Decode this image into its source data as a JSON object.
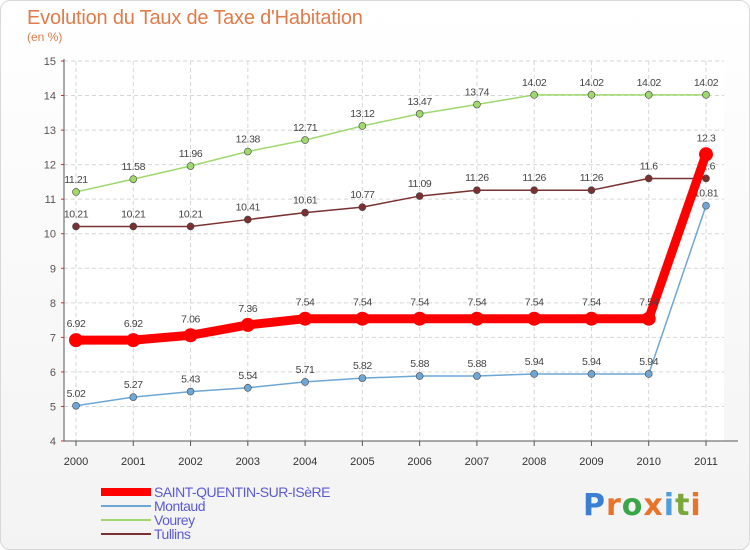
{
  "title": "Evolution du Taux de Taxe d'Habitation",
  "subtitle": "(en %)",
  "logo": {
    "text": "Proxiti",
    "colors": [
      "#3a7fd4",
      "#e8742c",
      "#3aa64a",
      "#e8742c",
      "#4f9edc",
      "#7aa83a",
      "#e8742c"
    ]
  },
  "chart_data": {
    "type": "line",
    "title": "Evolution du Taux de Taxe d'Habitation",
    "ylabel": "(en %)",
    "xlabel": "",
    "x": [
      "2000",
      "2001",
      "2002",
      "2003",
      "2004",
      "2005",
      "2006",
      "2007",
      "2008",
      "2009",
      "2010",
      "2011"
    ],
    "ylim": [
      4,
      15
    ],
    "yticks": [
      "4",
      "5",
      "6",
      "7",
      "8",
      "9",
      "10",
      "11",
      "12",
      "13",
      "14",
      "15"
    ],
    "grid": true,
    "legend_position": "bottom-left",
    "series": [
      {
        "name": "SAINT-QUENTIN-SUR-ISèRE",
        "color": "#ff0000",
        "values": [
          6.92,
          6.92,
          7.06,
          7.36,
          7.54,
          7.54,
          7.54,
          7.54,
          7.54,
          7.54,
          7.54,
          12.3
        ],
        "labels": [
          "6.92",
          "6.92",
          "7.06",
          "7.36",
          "7.54",
          "7.54",
          "7.54",
          "7.54",
          "7.54",
          "7.54",
          "7.54",
          "12.3"
        ]
      },
      {
        "name": "Montaud",
        "color": "#6ea6d6",
        "values": [
          5.02,
          5.27,
          5.43,
          5.54,
          5.71,
          5.82,
          5.88,
          5.88,
          5.94,
          5.94,
          5.94,
          10.81
        ],
        "labels": [
          "5.02",
          "5.27",
          "5.43",
          "5.54",
          "5.71",
          "5.82",
          "5.88",
          "5.88",
          "5.94",
          "5.94",
          "5.94",
          "10.81"
        ]
      },
      {
        "name": "Vourey",
        "color": "#9ed86e",
        "values": [
          11.21,
          11.58,
          11.96,
          12.38,
          12.71,
          13.12,
          13.47,
          13.74,
          14.02,
          14.02,
          14.02,
          14.02
        ],
        "labels": [
          "11.21",
          "11.58",
          "11.96",
          "12.38",
          "12.71",
          "13.12",
          "13.47",
          "13.74",
          "14.02",
          "14.02",
          "14.02",
          "14.02"
        ]
      },
      {
        "name": "Tullins",
        "color": "#7a3030",
        "values": [
          10.21,
          10.21,
          10.21,
          10.41,
          10.61,
          10.77,
          11.09,
          11.26,
          11.26,
          11.26,
          11.6,
          11.6
        ],
        "labels": [
          "10.21",
          "10.21",
          "10.21",
          "10.41",
          "10.61",
          "10.77",
          "11.09",
          "11.26",
          "11.26",
          "11.26",
          "11.6",
          "11.6"
        ]
      }
    ]
  }
}
